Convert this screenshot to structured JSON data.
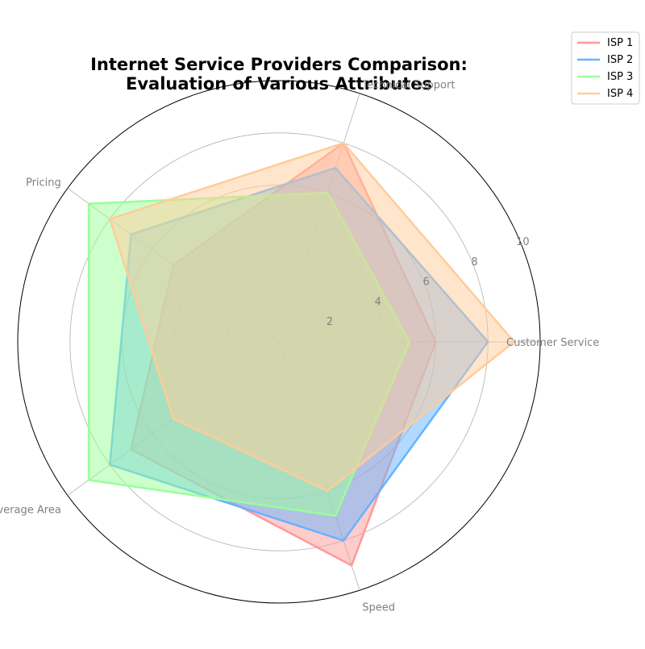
{
  "chart_data": {
    "type": "radar",
    "title_lines": [
      "Internet Service Providers Comparison:",
      "Evaluation of Various Attributes"
    ],
    "axes": [
      "Customer Service",
      "Technical Support",
      "Pricing",
      "Coverage Area",
      "Speed"
    ],
    "rlim": [
      0,
      10
    ],
    "rticks": [
      2,
      4,
      6,
      8,
      10
    ],
    "grid": true,
    "legend_position": "top-right",
    "series": [
      {
        "name": "ISP 1",
        "color": "#ff9999",
        "values": [
          6,
          8,
          5,
          7,
          9
        ]
      },
      {
        "name": "ISP 2",
        "color": "#66b3ff",
        "values": [
          8,
          7,
          7,
          8,
          8
        ]
      },
      {
        "name": "ISP 3",
        "color": "#99ff99",
        "values": [
          5,
          6,
          9,
          9,
          7
        ]
      },
      {
        "name": "ISP 4",
        "color": "#ffcc99",
        "values": [
          9,
          8,
          8,
          5,
          6
        ]
      }
    ]
  }
}
